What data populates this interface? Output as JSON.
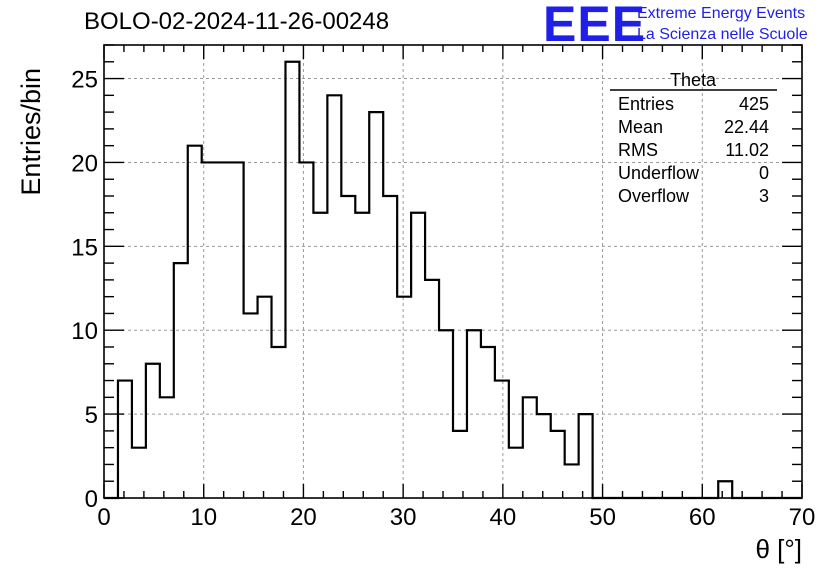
{
  "header": {
    "run_title": "BOLO-02-2024-11-26-00248",
    "logo_letters": "EEE",
    "logo_line1": "Extreme Energy Events",
    "logo_line2": "La Scienza nelle Scuole",
    "logo_color": "#1f1fe8"
  },
  "chart_data": {
    "type": "histogram",
    "xlabel": "θ [°]",
    "ylabel": "Entries/bin",
    "xlim": [
      0,
      70
    ],
    "ylim": [
      0,
      27
    ],
    "bin_width": 1.4,
    "xticks": [
      0,
      10,
      20,
      30,
      40,
      50,
      60,
      70
    ],
    "yticks": [
      0,
      5,
      10,
      15,
      20,
      25
    ],
    "grid": true,
    "values": [
      0,
      7,
      3,
      8,
      6,
      14,
      21,
      20,
      20,
      20,
      11,
      12,
      9,
      26,
      20,
      17,
      24,
      18,
      17,
      23,
      18,
      12,
      17,
      13,
      10,
      4,
      10,
      9,
      7,
      3,
      6,
      5,
      4,
      2,
      5,
      0,
      0,
      0,
      0,
      0,
      0,
      0,
      0,
      0,
      1,
      0,
      0,
      0,
      0,
      0
    ],
    "stats": {
      "name": "Theta",
      "rows": [
        {
          "label": "Entries",
          "value": "425"
        },
        {
          "label": "Mean",
          "value": "22.44"
        },
        {
          "label": "RMS",
          "value": "11.02"
        },
        {
          "label": "Underflow",
          "value": "0"
        },
        {
          "label": "Overflow",
          "value": "3"
        }
      ]
    }
  }
}
